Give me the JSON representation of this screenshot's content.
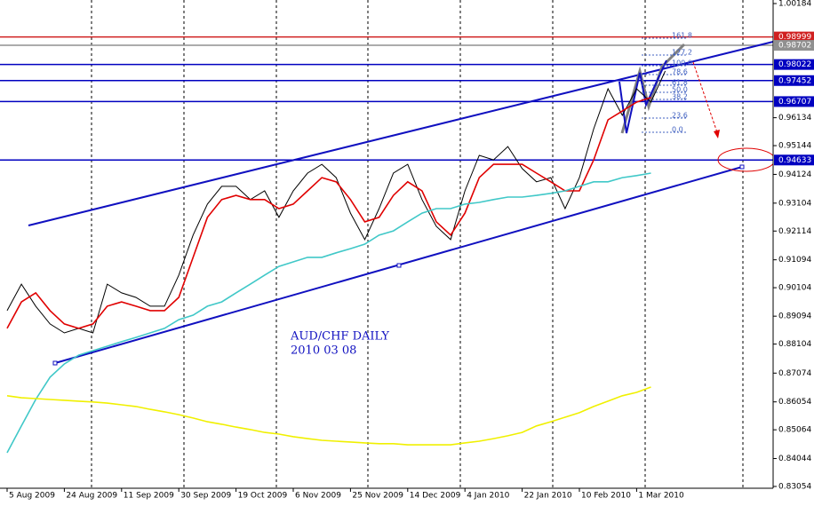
{
  "chart_data": {
    "type": "line",
    "title": "AUD/CHF DAILY",
    "subtitle": "2010 03 08",
    "categories": [
      "5 Aug 2009",
      null,
      null,
      null,
      "24 Aug 2009",
      null,
      null,
      null,
      "11 Sep 2009",
      null,
      null,
      null,
      "30 Sep 2009",
      null,
      null,
      null,
      "19 Oct 2009",
      null,
      null,
      null,
      "6 Nov 2009",
      null,
      null,
      null,
      "25 Nov 2009",
      null,
      null,
      null,
      "14 Dec 2009",
      null,
      null,
      null,
      "4 Jan 2010",
      null,
      null,
      null,
      "22 Jan 2010",
      null,
      null,
      null,
      "10 Feb 2010",
      null,
      null,
      null,
      "1 Mar 2010",
      null,
      null
    ],
    "series": [
      {
        "color": "#000000",
        "values": [
          0.8929,
          0.9023,
          0.8945,
          0.8882,
          0.885,
          0.8866,
          0.885,
          0.9023,
          0.8992,
          0.8976,
          0.8945,
          0.8945,
          0.9055,
          0.9197,
          0.9307,
          0.937,
          0.937,
          0.9323,
          0.9354,
          0.926,
          0.9354,
          0.9417,
          0.9448,
          0.9401,
          0.9275,
          0.9181,
          0.9291,
          0.9417,
          0.9448,
          0.9323,
          0.9228,
          0.9181,
          0.9354,
          0.948,
          0.9464,
          0.9511,
          0.9433,
          0.9386,
          0.9401,
          0.9291,
          0.9401,
          0.9574,
          0.9716,
          0.9622,
          0.9716,
          0.9669,
          0.9779
        ]
      },
      {
        "color": "#e00000",
        "values": [
          0.8866,
          0.896,
          0.8992,
          0.8929,
          0.8882,
          0.8866,
          0.8882,
          0.8945,
          0.896,
          0.8945,
          0.8929,
          0.8929,
          0.8976,
          0.9118,
          0.926,
          0.9323,
          0.9338,
          0.9323,
          0.9323,
          0.9291,
          0.9307,
          0.9354,
          0.9401,
          0.9386,
          0.9323,
          0.9244,
          0.926,
          0.9338,
          0.9386,
          0.9354,
          0.9244,
          0.9197,
          0.9275,
          0.9401,
          0.9448,
          0.9448,
          0.9448,
          0.9417,
          0.9386,
          0.9354,
          0.9354,
          0.9464,
          0.9606,
          0.9637,
          0.9669,
          0.9685,
          null
        ]
      },
      {
        "color": "#40c8c8",
        "values": [
          0.8425,
          0.852,
          0.8614,
          0.8693,
          0.874,
          0.8771,
          0.8787,
          0.8803,
          0.8819,
          0.8834,
          0.885,
          0.8866,
          0.8897,
          0.8913,
          0.8945,
          0.896,
          0.8992,
          0.9023,
          0.9055,
          0.9086,
          0.9102,
          0.9118,
          0.9118,
          0.9134,
          0.9149,
          0.9165,
          0.9197,
          0.9212,
          0.9244,
          0.9275,
          0.9291,
          0.9291,
          0.9307,
          0.9313,
          0.9323,
          0.9332,
          0.9332,
          0.9338,
          0.9345,
          0.9354,
          0.937,
          0.9386,
          0.9386,
          0.9401,
          0.9408,
          0.9417,
          null
        ]
      },
      {
        "color": "#f0f000",
        "values": [
          0.8627,
          0.862,
          0.8617,
          0.8614,
          0.8611,
          0.8608,
          0.8605,
          0.8601,
          0.8595,
          0.8589,
          0.8579,
          0.857,
          0.856,
          0.8548,
          0.8535,
          0.8526,
          0.8516,
          0.8507,
          0.8497,
          0.8491,
          0.8482,
          0.8475,
          0.8469,
          0.8466,
          0.8463,
          0.846,
          0.8457,
          0.8457,
          0.8453,
          0.8453,
          0.8453,
          0.8453,
          0.846,
          0.8466,
          0.8475,
          0.8485,
          0.8497,
          0.852,
          0.8535,
          0.8551,
          0.8567,
          0.8589,
          0.8608,
          0.8627,
          0.8639,
          0.8658,
          null
        ]
      }
    ],
    "ylim": [
      0.8299,
      1.0031
    ],
    "yticks": [
      0.83054,
      0.84044,
      0.85064,
      0.86054,
      0.87074,
      0.88104,
      0.89094,
      0.90104,
      0.91094,
      0.92114,
      0.93104,
      0.94124,
      0.95144,
      0.96134,
      1.00184
    ],
    "levels": [
      {
        "value": 0.98999,
        "color": "#d02020"
      },
      {
        "value": 0.98702,
        "color": "#909090"
      },
      {
        "value": 0.98022,
        "color": "#0000c0"
      },
      {
        "value": 0.97452,
        "color": "#0000c0"
      },
      {
        "value": 0.96707,
        "color": "#0000c0"
      },
      {
        "value": 0.94633,
        "color": "#0000c0"
      }
    ],
    "fib_labels": [
      "161.8",
      "127.2",
      "100.0",
      "78.6",
      "61.8",
      "50.0",
      "38.2",
      "23.6",
      "0.0"
    ]
  }
}
